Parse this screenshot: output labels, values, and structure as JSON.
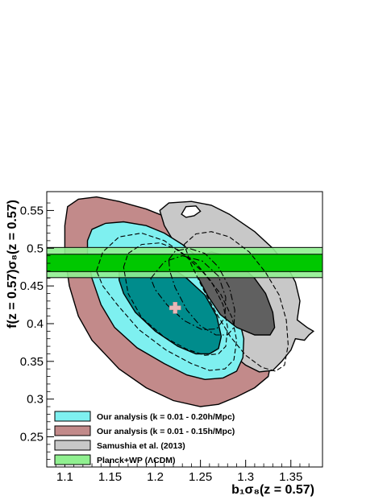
{
  "chart_data": {
    "type": "contour",
    "xlabel": "b₁σ₈(z = 0.57)",
    "ylabel": "f(z = 0.57)σ₈(z = 0.57)",
    "xlim": [
      1.08,
      1.385
    ],
    "ylim": [
      0.21,
      0.575
    ],
    "x_ticks": [
      "1.1",
      "1.15",
      "1.2",
      "1.25",
      "1.3",
      "1.35"
    ],
    "y_ticks": [
      "0.25",
      "0.3",
      "0.35",
      "0.4",
      "0.45",
      "0.5",
      "0.55"
    ],
    "grid": false,
    "legend_position": "bottom-left",
    "legend": [
      {
        "label": "Our analysis (k = 0.01 - 0.20h/Mpc)",
        "color": "#7ef0f0"
      },
      {
        "label": "Our analysis (k = 0.01 - 0.15h/Mpc)",
        "color": "#c28a8a"
      },
      {
        "label": "Samushia et al. (2013)",
        "color": "#c8c8c8"
      },
      {
        "label": "Planck+WP (ΛCDM)",
        "color": "#90f090"
      }
    ],
    "best_fit": {
      "x": 1.222,
      "y": 0.421,
      "color": "#e8b8b8"
    },
    "planck_band": {
      "outer": [
        0.461,
        0.501
      ],
      "inner": [
        0.469,
        0.492
      ],
      "outer_color": "#90f090",
      "inner_color": "#00c800"
    },
    "series": [
      {
        "id": "k015-2sigma",
        "fill": "#c28a8a",
        "points": [
          [
            1.1,
            0.53
          ],
          [
            1.103,
            0.555
          ],
          [
            1.115,
            0.565
          ],
          [
            1.135,
            0.568
          ],
          [
            1.16,
            0.562
          ],
          [
            1.19,
            0.552
          ],
          [
            1.215,
            0.54
          ],
          [
            1.235,
            0.525
          ],
          [
            1.26,
            0.505
          ],
          [
            1.28,
            0.485
          ],
          [
            1.3,
            0.46
          ],
          [
            1.315,
            0.43
          ],
          [
            1.325,
            0.395
          ],
          [
            1.33,
            0.36
          ],
          [
            1.325,
            0.33
          ],
          [
            1.31,
            0.315
          ],
          [
            1.29,
            0.303
          ],
          [
            1.27,
            0.293
          ],
          [
            1.25,
            0.29
          ],
          [
            1.22,
            0.298
          ],
          [
            1.19,
            0.315
          ],
          [
            1.16,
            0.34
          ],
          [
            1.13,
            0.378
          ],
          [
            1.115,
            0.41
          ],
          [
            1.105,
            0.45
          ],
          [
            1.1,
            0.49
          ]
        ]
      },
      {
        "id": "k020-2sigma",
        "fill": "#7ef0f0",
        "points": [
          [
            1.125,
            0.51
          ],
          [
            1.13,
            0.525
          ],
          [
            1.145,
            0.533
          ],
          [
            1.165,
            0.535
          ],
          [
            1.19,
            0.53
          ],
          [
            1.21,
            0.52
          ],
          [
            1.23,
            0.505
          ],
          [
            1.25,
            0.485
          ],
          [
            1.268,
            0.465
          ],
          [
            1.282,
            0.44
          ],
          [
            1.292,
            0.41
          ],
          [
            1.298,
            0.38
          ],
          [
            1.297,
            0.355
          ],
          [
            1.29,
            0.337
          ],
          [
            1.275,
            0.328
          ],
          [
            1.255,
            0.326
          ],
          [
            1.235,
            0.332
          ],
          [
            1.21,
            0.347
          ],
          [
            1.18,
            0.368
          ],
          [
            1.155,
            0.395
          ],
          [
            1.14,
            0.425
          ],
          [
            1.13,
            0.46
          ],
          [
            1.125,
            0.49
          ]
        ]
      },
      {
        "id": "k020-1sigma",
        "fill": "#008c8c",
        "points": [
          [
            1.16,
            0.47
          ],
          [
            1.165,
            0.485
          ],
          [
            1.18,
            0.49
          ],
          [
            1.195,
            0.487
          ],
          [
            1.215,
            0.477
          ],
          [
            1.235,
            0.46
          ],
          [
            1.255,
            0.438
          ],
          [
            1.268,
            0.41
          ],
          [
            1.273,
            0.383
          ],
          [
            1.27,
            0.367
          ],
          [
            1.26,
            0.36
          ],
          [
            1.245,
            0.36
          ],
          [
            1.225,
            0.37
          ],
          [
            1.2,
            0.39
          ],
          [
            1.178,
            0.415
          ],
          [
            1.165,
            0.44
          ],
          [
            1.16,
            0.458
          ]
        ]
      },
      {
        "id": "samushia-2sigma",
        "fill": "#c8c8c8",
        "points": [
          [
            1.205,
            0.55
          ],
          [
            1.215,
            0.56
          ],
          [
            1.24,
            0.562
          ],
          [
            1.262,
            0.557
          ],
          [
            1.282,
            0.545
          ],
          [
            1.31,
            0.522
          ],
          [
            1.33,
            0.5
          ],
          [
            1.345,
            0.478
          ],
          [
            1.355,
            0.455
          ],
          [
            1.36,
            0.43
          ],
          [
            1.357,
            0.405
          ],
          [
            1.368,
            0.395
          ],
          [
            1.375,
            0.39
          ],
          [
            1.37,
            0.385
          ],
          [
            1.365,
            0.378
          ],
          [
            1.355,
            0.38
          ],
          [
            1.35,
            0.365
          ],
          [
            1.34,
            0.35
          ],
          [
            1.33,
            0.338
          ],
          [
            1.315,
            0.336
          ],
          [
            1.3,
            0.345
          ],
          [
            1.285,
            0.36
          ],
          [
            1.27,
            0.385
          ],
          [
            1.255,
            0.42
          ],
          [
            1.24,
            0.46
          ],
          [
            1.225,
            0.5
          ],
          [
            1.21,
            0.53
          ]
        ]
      },
      {
        "id": "samushia-1sigma",
        "fill": "#606060",
        "points": [
          [
            1.245,
            0.48
          ],
          [
            1.25,
            0.49
          ],
          [
            1.262,
            0.495
          ],
          [
            1.278,
            0.49
          ],
          [
            1.295,
            0.477
          ],
          [
            1.31,
            0.46
          ],
          [
            1.322,
            0.44
          ],
          [
            1.33,
            0.415
          ],
          [
            1.332,
            0.395
          ],
          [
            1.327,
            0.385
          ],
          [
            1.31,
            0.385
          ],
          [
            1.29,
            0.395
          ],
          [
            1.272,
            0.412
          ],
          [
            1.258,
            0.437
          ],
          [
            1.248,
            0.46
          ]
        ]
      },
      {
        "id": "samushia-hole",
        "fill": "#ffffff",
        "points": [
          [
            1.229,
            0.545
          ],
          [
            1.234,
            0.555
          ],
          [
            1.245,
            0.556
          ],
          [
            1.25,
            0.549
          ],
          [
            1.243,
            0.543
          ],
          [
            1.234,
            0.541
          ]
        ]
      },
      {
        "id": "k015-1sigma-dashed",
        "dash": "6,3",
        "points": [
          [
            1.165,
            0.475
          ],
          [
            1.17,
            0.493
          ],
          [
            1.185,
            0.505
          ],
          [
            1.205,
            0.507
          ],
          [
            1.225,
            0.498
          ],
          [
            1.245,
            0.48
          ],
          [
            1.262,
            0.456
          ],
          [
            1.275,
            0.425
          ],
          [
            1.28,
            0.395
          ],
          [
            1.278,
            0.37
          ],
          [
            1.27,
            0.36
          ],
          [
            1.255,
            0.358
          ],
          [
            1.235,
            0.366
          ],
          [
            1.21,
            0.382
          ],
          [
            1.185,
            0.408
          ],
          [
            1.17,
            0.44
          ]
        ]
      },
      {
        "id": "k015-2sigma-dashed",
        "dash": "6,3",
        "points": [
          [
            1.135,
            0.47
          ],
          [
            1.142,
            0.495
          ],
          [
            1.16,
            0.515
          ],
          [
            1.185,
            0.52
          ],
          [
            1.21,
            0.51
          ],
          [
            1.233,
            0.49
          ],
          [
            1.253,
            0.468
          ],
          [
            1.272,
            0.44
          ],
          [
            1.285,
            0.408
          ],
          [
            1.29,
            0.378
          ],
          [
            1.287,
            0.352
          ],
          [
            1.277,
            0.34
          ],
          [
            1.26,
            0.338
          ],
          [
            1.24,
            0.347
          ],
          [
            1.212,
            0.365
          ],
          [
            1.182,
            0.392
          ],
          [
            1.158,
            0.425
          ],
          [
            1.142,
            0.45
          ]
        ]
      },
      {
        "id": "samushia-dashed",
        "dash": "6,3",
        "points": [
          [
            1.232,
            0.505
          ],
          [
            1.245,
            0.519
          ],
          [
            1.262,
            0.522
          ],
          [
            1.282,
            0.515
          ],
          [
            1.304,
            0.495
          ],
          [
            1.322,
            0.468
          ],
          [
            1.337,
            0.438
          ],
          [
            1.345,
            0.405
          ],
          [
            1.347,
            0.372
          ],
          [
            1.343,
            0.345
          ],
          [
            1.333,
            0.337
          ],
          [
            1.318,
            0.342
          ],
          [
            1.3,
            0.358
          ],
          [
            1.283,
            0.383
          ],
          [
            1.268,
            0.413
          ],
          [
            1.252,
            0.448
          ],
          [
            1.24,
            0.478
          ]
        ]
      },
      {
        "id": "dashdot-1",
        "dash": "8,3,2,3",
        "points": [
          [
            1.215,
            0.485
          ],
          [
            1.222,
            0.496
          ],
          [
            1.237,
            0.5
          ],
          [
            1.255,
            0.493
          ],
          [
            1.27,
            0.475
          ],
          [
            1.282,
            0.448
          ],
          [
            1.288,
            0.418
          ],
          [
            1.287,
            0.395
          ],
          [
            1.28,
            0.385
          ],
          [
            1.267,
            0.385
          ],
          [
            1.25,
            0.397
          ],
          [
            1.235,
            0.418
          ],
          [
            1.222,
            0.448
          ],
          [
            1.216,
            0.47
          ]
        ]
      },
      {
        "id": "dashdot-2",
        "dash": "8,3,2,3",
        "points": [
          [
            1.195,
            0.46
          ],
          [
            1.21,
            0.482
          ],
          [
            1.23,
            0.49
          ],
          [
            1.252,
            0.483
          ],
          [
            1.27,
            0.463
          ],
          [
            1.278,
            0.435
          ],
          [
            1.277,
            0.408
          ],
          [
            1.268,
            0.393
          ],
          [
            1.252,
            0.392
          ],
          [
            1.232,
            0.404
          ],
          [
            1.213,
            0.425
          ],
          [
            1.2,
            0.445
          ]
        ]
      }
    ]
  }
}
